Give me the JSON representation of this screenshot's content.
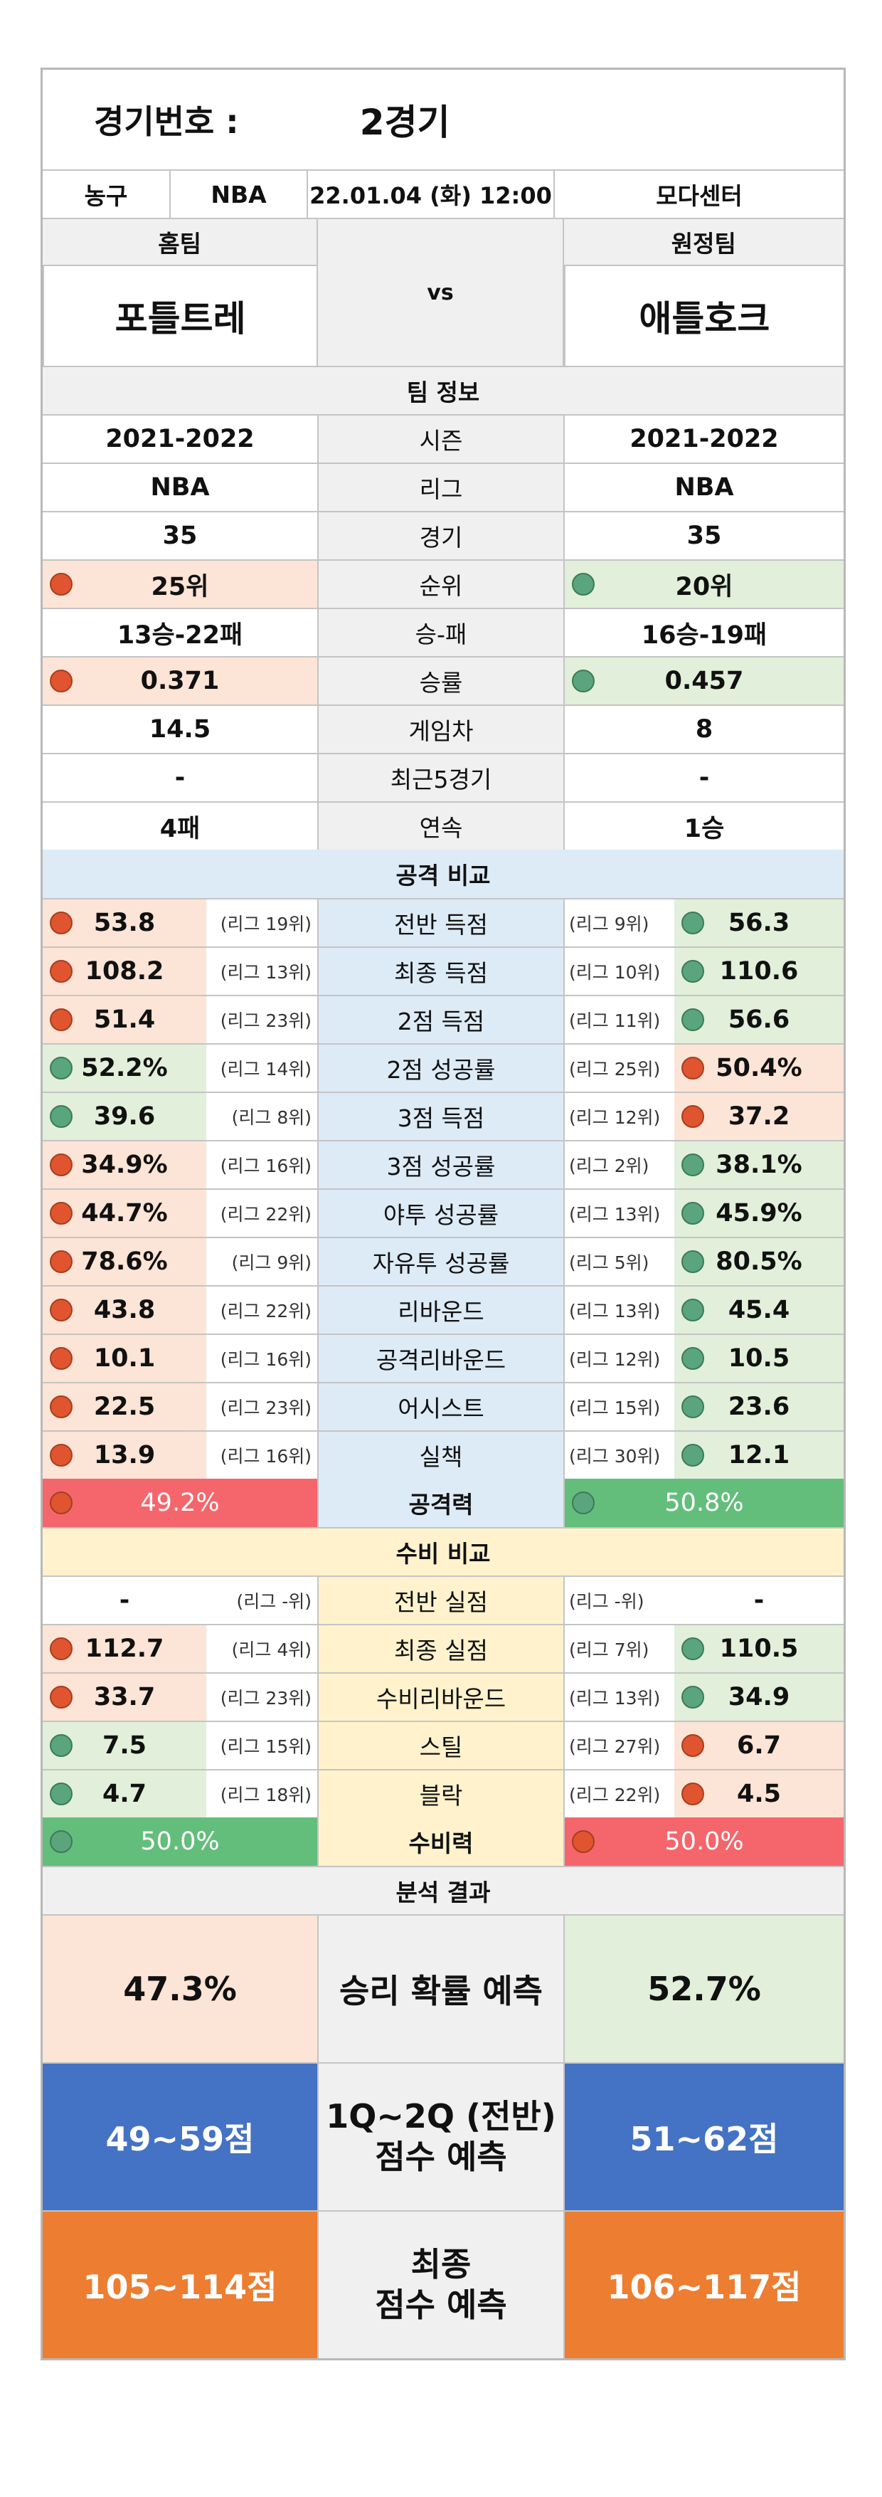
{
  "header": {
    "game_no_label": "경기번호 :",
    "game_no_value": "2경기",
    "sport": "농구",
    "league": "NBA",
    "datetime": "22.01.04 (화) 12:00",
    "venue": "모다센터"
  },
  "teams": {
    "home_label": "홈팀",
    "away_label": "원정팀",
    "vs": "vs",
    "home_name": "포틀트레",
    "away_name": "애틀호크"
  },
  "team_info": {
    "title": "팀 정보",
    "rows": [
      {
        "label": "시즌",
        "home": "2021-2022",
        "away": "2021-2022"
      },
      {
        "label": "리그",
        "home": "NBA",
        "away": "NBA"
      },
      {
        "label": "경기",
        "home": "35",
        "away": "35"
      },
      {
        "label": "순위",
        "home": "25위",
        "away": "20위",
        "home_dot": "red",
        "away_dot": "green"
      },
      {
        "label": "승-패",
        "home": "13승-22패",
        "away": "16승-19패"
      },
      {
        "label": "승률",
        "home": "0.371",
        "away": "0.457",
        "home_dot": "red",
        "away_dot": "green"
      },
      {
        "label": "게임차",
        "home": "14.5",
        "away": "8"
      },
      {
        "label": "최근5경기",
        "home": "-",
        "away": "-"
      },
      {
        "label": "연속",
        "home": "4패",
        "away": "1승"
      }
    ]
  },
  "attack": {
    "title": "공격 비교",
    "rows": [
      {
        "label": "전반 득점",
        "home": "53.8",
        "home_rank": "(리그 19위)",
        "away": "56.3",
        "away_rank": "(리그 9위)",
        "home_dot": "red",
        "away_dot": "green"
      },
      {
        "label": "최종 득점",
        "home": "108.2",
        "home_rank": "(리그 13위)",
        "away": "110.6",
        "away_rank": "(리그 10위)",
        "home_dot": "red",
        "away_dot": "green"
      },
      {
        "label": "2점 득점",
        "home": "51.4",
        "home_rank": "(리그 23위)",
        "away": "56.6",
        "away_rank": "(리그 11위)",
        "home_dot": "red",
        "away_dot": "green"
      },
      {
        "label": "2점 성공률",
        "home": "52.2%",
        "home_rank": "(리그 14위)",
        "away": "50.4%",
        "away_rank": "(리그 25위)",
        "home_dot": "green",
        "away_dot": "red"
      },
      {
        "label": "3점 득점",
        "home": "39.6",
        "home_rank": "(리그 8위)",
        "away": "37.2",
        "away_rank": "(리그 12위)",
        "home_dot": "green",
        "away_dot": "red"
      },
      {
        "label": "3점 성공률",
        "home": "34.9%",
        "home_rank": "(리그 16위)",
        "away": "38.1%",
        "away_rank": "(리그 2위)",
        "home_dot": "red",
        "away_dot": "green"
      },
      {
        "label": "야투 성공률",
        "home": "44.7%",
        "home_rank": "(리그 22위)",
        "away": "45.9%",
        "away_rank": "(리그 13위)",
        "home_dot": "red",
        "away_dot": "green"
      },
      {
        "label": "자유투 성공률",
        "home": "78.6%",
        "home_rank": "(리그 9위)",
        "away": "80.5%",
        "away_rank": "(리그 5위)",
        "home_dot": "red",
        "away_dot": "green"
      },
      {
        "label": "리바운드",
        "home": "43.8",
        "home_rank": "(리그 22위)",
        "away": "45.4",
        "away_rank": "(리그 13위)",
        "home_dot": "red",
        "away_dot": "green"
      },
      {
        "label": "공격리바운드",
        "home": "10.1",
        "home_rank": "(리그 16위)",
        "away": "10.5",
        "away_rank": "(리그 12위)",
        "home_dot": "red",
        "away_dot": "green"
      },
      {
        "label": "어시스트",
        "home": "22.5",
        "home_rank": "(리그 23위)",
        "away": "23.6",
        "away_rank": "(리그 15위)",
        "home_dot": "red",
        "away_dot": "green"
      },
      {
        "label": "실책",
        "home": "13.9",
        "home_rank": "(리그 16위)",
        "away": "12.1",
        "away_rank": "(리그 30위)",
        "home_dot": "red",
        "away_dot": "green"
      }
    ],
    "power": {
      "label": "공격력",
      "home": "49.2%",
      "away": "50.8%",
      "home_color": "#f4666c",
      "away_color": "#63be7b"
    }
  },
  "defense": {
    "title": "수비 비교",
    "rows": [
      {
        "label": "전반 실점",
        "home": "-",
        "home_rank": "(리그 -위)",
        "away": "-",
        "away_rank": "(리그 -위)"
      },
      {
        "label": "최종 실점",
        "home": "112.7",
        "home_rank": "(리그 4위)",
        "away": "110.5",
        "away_rank": "(리그 7위)",
        "home_dot": "red",
        "away_dot": "green"
      },
      {
        "label": "수비리바운드",
        "home": "33.7",
        "home_rank": "(리그 23위)",
        "away": "34.9",
        "away_rank": "(리그 13위)",
        "home_dot": "red",
        "away_dot": "green"
      },
      {
        "label": "스틸",
        "home": "7.5",
        "home_rank": "(리그 15위)",
        "away": "6.7",
        "away_rank": "(리그 27위)",
        "home_dot": "green",
        "away_dot": "red"
      },
      {
        "label": "블락",
        "home": "4.7",
        "home_rank": "(리그 18위)",
        "away": "4.5",
        "away_rank": "(리그 22위)",
        "home_dot": "green",
        "away_dot": "red"
      }
    ],
    "power": {
      "label": "수비력",
      "home": "50.0%",
      "away": "50.0%",
      "home_color": "#63be7b",
      "away_color": "#f4666c"
    }
  },
  "analysis": {
    "title": "분석 결과",
    "win_prob": {
      "home": "47.3%",
      "label": "승리 확률 예측",
      "away": "52.7%"
    },
    "half_score": {
      "home": "49~59점",
      "label_line1": "1Q~2Q (전반)",
      "label_line2": "점수 예측",
      "away": "51~62점"
    },
    "final_score": {
      "home": "105~114점",
      "label_line1": "최종",
      "label_line2": "점수 예측",
      "away": "106~117점"
    }
  }
}
